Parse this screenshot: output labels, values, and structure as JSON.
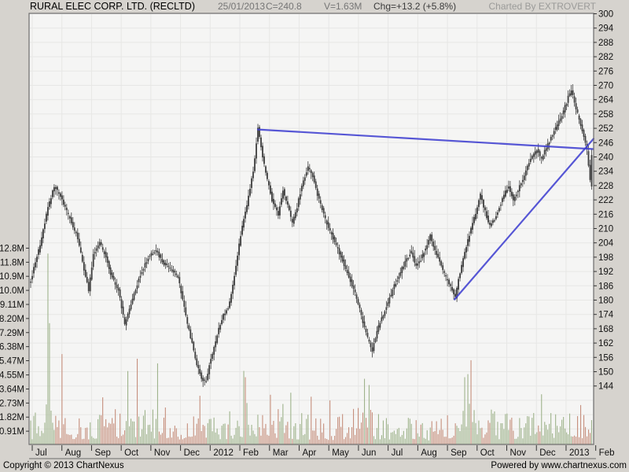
{
  "header": {
    "title": "RURAL ELEC CORP. LTD. (RECLTD)",
    "date": "25/01/2013",
    "close_label": "C=240.8",
    "volume_label": "V=1.63M",
    "change_label": "Chg=+13.2 (+5.8%)",
    "charted_by": "Charted By EXTROVERT"
  },
  "footer": {
    "copyright": "Copyright © 2013 ChartNexus",
    "powered_by": "Powered by www.chartnexus.com"
  },
  "colors": {
    "bg": "#d6d3ce",
    "plot_bg": "#f5f5f4",
    "grid": "#e7e7e5",
    "border": "#6b6b6b",
    "tick": "#333333",
    "candle": "#3c3c3c",
    "vol_up": "#9fb38c",
    "vol_down": "#c68f7d",
    "trendline": "#4040d0",
    "axis_text": "#111111"
  },
  "chart_data": {
    "type": "candlestick+volume",
    "symbol": "RECLTD",
    "company": "RURAL ELEC CORP. LTD.",
    "last_quote": {
      "date": "25/01/2013",
      "close": 240.8,
      "volume_shares": "1.63M",
      "change": 13.2,
      "change_pct": 5.8
    },
    "x_axis": {
      "labels": [
        "Jul",
        "Aug",
        "Sep",
        "Oct",
        "Nov",
        "Dec",
        "2012",
        "Feb",
        "Mar",
        "Apr",
        "May",
        "Jun",
        "Jul",
        "Aug",
        "Sep",
        "Oct",
        "Nov",
        "Dec",
        "2013",
        "Feb"
      ],
      "period_start": "Jul 2011",
      "period_end": "Feb 2013"
    },
    "price_axis": {
      "side": "right",
      "min": 144,
      "max": 300,
      "step": 6,
      "ticks": [
        300,
        294,
        288,
        282,
        276,
        270,
        264,
        258,
        252,
        246,
        240,
        234,
        228,
        222,
        216,
        210,
        204,
        198,
        192,
        186,
        180,
        174,
        168,
        162,
        156,
        150,
        144
      ]
    },
    "volume_axis": {
      "side": "left",
      "labels": [
        "12.8M",
        "11.8M",
        "10.9M",
        "10.0M",
        "9.11M",
        "8.20M",
        "7.29M",
        "6.38M",
        "5.47M",
        "4.55M",
        "3.64M",
        "2.73M",
        "1.82M",
        "0.91M"
      ],
      "values": [
        12.75,
        11.84,
        10.93,
        10.02,
        9.11,
        8.2,
        7.29,
        6.38,
        5.47,
        4.55,
        3.64,
        2.73,
        1.82,
        0.91
      ]
    },
    "candle_count": 359,
    "noise_seed": 20130125,
    "price_path": [
      [
        0,
        188
      ],
      [
        3,
        196
      ],
      [
        6,
        203
      ],
      [
        10,
        216
      ],
      [
        15,
        228
      ],
      [
        20,
        222
      ],
      [
        25,
        214
      ],
      [
        30,
        206
      ],
      [
        34,
        193
      ],
      [
        37,
        184
      ],
      [
        40,
        199
      ],
      [
        44,
        204
      ],
      [
        48,
        198
      ],
      [
        51,
        191
      ],
      [
        56,
        184
      ],
      [
        60,
        170
      ],
      [
        63,
        176
      ],
      [
        69,
        189
      ],
      [
        75,
        198
      ],
      [
        80,
        201
      ],
      [
        85,
        195
      ],
      [
        90,
        193
      ],
      [
        94,
        190
      ],
      [
        97,
        180
      ],
      [
        100,
        170
      ],
      [
        103,
        162
      ],
      [
        106,
        153
      ],
      [
        109,
        147
      ],
      [
        112,
        146
      ],
      [
        114,
        153
      ],
      [
        117,
        160
      ],
      [
        120,
        168
      ],
      [
        123,
        174
      ],
      [
        126,
        177
      ],
      [
        128,
        182
      ],
      [
        130,
        190
      ],
      [
        132,
        199
      ],
      [
        134,
        207
      ],
      [
        136,
        214
      ],
      [
        138,
        220
      ],
      [
        140,
        227
      ],
      [
        142,
        234
      ],
      [
        145,
        252
      ],
      [
        147,
        244
      ],
      [
        150,
        233
      ],
      [
        154,
        222
      ],
      [
        158,
        216
      ],
      [
        161,
        226
      ],
      [
        164,
        220
      ],
      [
        167,
        212
      ],
      [
        170,
        219
      ],
      [
        173,
        228
      ],
      [
        177,
        236
      ],
      [
        180,
        232
      ],
      [
        183,
        224
      ],
      [
        188,
        214
      ],
      [
        193,
        206
      ],
      [
        198,
        198
      ],
      [
        203,
        190
      ],
      [
        207,
        183
      ],
      [
        210,
        176
      ],
      [
        213,
        168
      ],
      [
        216,
        162
      ],
      [
        218,
        159
      ],
      [
        221,
        167
      ],
      [
        225,
        174
      ],
      [
        228,
        179
      ],
      [
        232,
        186
      ],
      [
        236,
        192
      ],
      [
        240,
        197
      ],
      [
        243,
        200
      ],
      [
        246,
        194
      ],
      [
        249,
        197
      ],
      [
        252,
        202
      ],
      [
        255,
        207
      ],
      [
        258,
        201
      ],
      [
        262,
        194
      ],
      [
        266,
        188
      ],
      [
        269,
        184
      ],
      [
        271,
        181
      ],
      [
        273,
        189
      ],
      [
        276,
        197
      ],
      [
        279,
        205
      ],
      [
        282,
        212
      ],
      [
        285,
        219
      ],
      [
        287,
        224
      ],
      [
        290,
        217
      ],
      [
        293,
        211
      ],
      [
        296,
        214
      ],
      [
        299,
        219
      ],
      [
        302,
        224
      ],
      [
        305,
        228
      ],
      [
        308,
        222
      ],
      [
        311,
        226
      ],
      [
        314,
        231
      ],
      [
        317,
        236
      ],
      [
        320,
        240
      ],
      [
        323,
        243
      ],
      [
        326,
        239
      ],
      [
        329,
        244
      ],
      [
        332,
        248
      ],
      [
        335,
        252
      ],
      [
        338,
        256
      ],
      [
        341,
        261
      ],
      [
        343,
        265
      ],
      [
        345,
        268
      ],
      [
        347,
        263
      ],
      [
        349,
        258
      ],
      [
        351,
        253
      ],
      [
        353,
        249
      ],
      [
        355,
        243
      ],
      [
        356,
        236
      ],
      [
        357,
        230
      ],
      [
        358,
        227.6
      ]
    ],
    "last_candle": {
      "open": 227.6,
      "high": 243.5,
      "low": 226.3,
      "close": 240.8
    },
    "volume_envelope": [
      [
        0,
        1.1
      ],
      [
        10,
        1.6
      ],
      [
        22,
        1.3
      ],
      [
        45,
        1.2
      ],
      [
        60,
        1.5
      ],
      [
        80,
        1.4
      ],
      [
        100,
        1.2
      ],
      [
        120,
        1.1
      ],
      [
        135,
        1.6
      ],
      [
        145,
        1.9
      ],
      [
        155,
        1.5
      ],
      [
        165,
        1.3
      ],
      [
        180,
        1.2
      ],
      [
        195,
        1.1
      ],
      [
        210,
        1.5
      ],
      [
        225,
        1.2
      ],
      [
        240,
        1.1
      ],
      [
        255,
        1.0
      ],
      [
        268,
        1.3
      ],
      [
        278,
        2.0
      ],
      [
        290,
        1.5
      ],
      [
        300,
        1.2
      ],
      [
        312,
        1.3
      ],
      [
        326,
        1.5
      ],
      [
        338,
        1.3
      ],
      [
        350,
        1.3
      ],
      [
        358,
        1.2
      ]
    ],
    "volume_spikes": [
      [
        11,
        12.4,
        "up"
      ],
      [
        12,
        7.9,
        "up"
      ],
      [
        20,
        5.9,
        "down"
      ],
      [
        46,
        3.1,
        "down"
      ],
      [
        62,
        4.8,
        "up"
      ],
      [
        68,
        5.6,
        "down"
      ],
      [
        81,
        5.3,
        "up"
      ],
      [
        108,
        3.2,
        "down"
      ],
      [
        137,
        4.4,
        "down"
      ],
      [
        166,
        3.4,
        "up"
      ],
      [
        191,
        2.9,
        "down"
      ],
      [
        213,
        4.3,
        "up"
      ],
      [
        216,
        3.9,
        "up"
      ],
      [
        277,
        4.4,
        "up"
      ],
      [
        279,
        4.6,
        "up"
      ],
      [
        281,
        5.5,
        "down"
      ],
      [
        326,
        3.3,
        "up"
      ],
      [
        351,
        2.6,
        "down"
      ],
      [
        358,
        1.63,
        "up"
      ]
    ],
    "trendlines": [
      {
        "name": "resistance",
        "i1": 145,
        "p1": 251.5,
        "i2": 359,
        "p2": 243.3
      },
      {
        "name": "support",
        "i1": 270.5,
        "p1": 180.3,
        "i2": 359.2,
        "p2": 247.6
      }
    ],
    "grid": true,
    "legend": "none"
  }
}
